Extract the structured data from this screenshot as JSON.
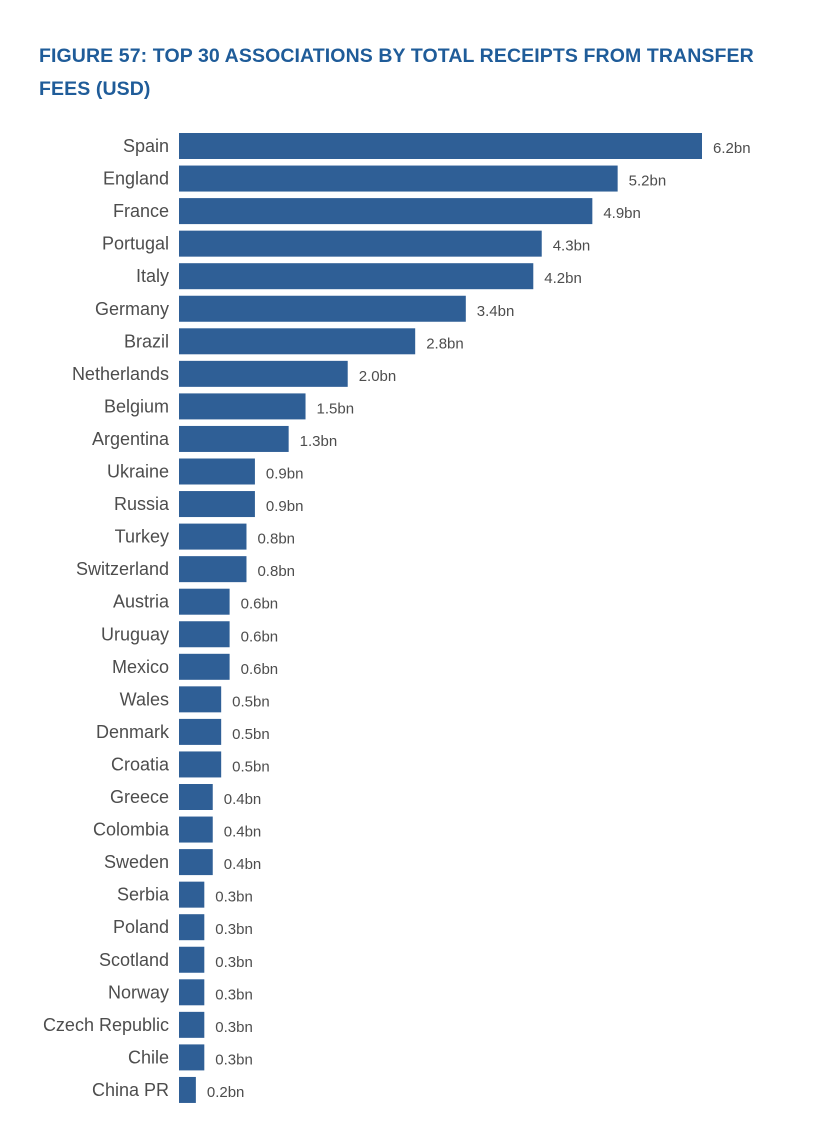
{
  "chart_data": {
    "type": "bar",
    "orientation": "horizontal",
    "title": "FIGURE 57: TOP 30 ASSOCIATIONS BY TOTAL RECEIPTS FROM TRANSFER FEES (USD)",
    "xlabel": "",
    "ylabel": "",
    "unit_suffix": "bn",
    "xlim": [
      0,
      6.2
    ],
    "grid": false,
    "legend": "none",
    "bar_color": "#2f5f96",
    "categories": [
      "Spain",
      "England",
      "France",
      "Portugal",
      "Italy",
      "Germany",
      "Brazil",
      "Netherlands",
      "Belgium",
      "Argentina",
      "Ukraine",
      "Russia",
      "Turkey",
      "Switzerland",
      "Austria",
      "Uruguay",
      "Mexico",
      "Wales",
      "Denmark",
      "Croatia",
      "Greece",
      "Colombia",
      "Sweden",
      "Serbia",
      "Poland",
      "Scotland",
      "Norway",
      "Czech Republic",
      "Chile",
      "China PR"
    ],
    "values": [
      6.2,
      5.2,
      4.9,
      4.3,
      4.2,
      3.4,
      2.8,
      2.0,
      1.5,
      1.3,
      0.9,
      0.9,
      0.8,
      0.8,
      0.6,
      0.6,
      0.6,
      0.5,
      0.5,
      0.5,
      0.4,
      0.4,
      0.4,
      0.3,
      0.3,
      0.3,
      0.3,
      0.3,
      0.3,
      0.2
    ],
    "value_labels": [
      "6.2bn",
      "5.2bn",
      "4.9bn",
      "4.3bn",
      "4.2bn",
      "3.4bn",
      "2.8bn",
      "2.0bn",
      "1.5bn",
      "1.3bn",
      "0.9bn",
      "0.9bn",
      "0.8bn",
      "0.8bn",
      "0.6bn",
      "0.6bn",
      "0.6bn",
      "0.5bn",
      "0.5bn",
      "0.5bn",
      "0.4bn",
      "0.4bn",
      "0.4bn",
      "0.3bn",
      "0.3bn",
      "0.3bn",
      "0.3bn",
      "0.3bn",
      "0.3bn",
      "0.2bn"
    ]
  }
}
